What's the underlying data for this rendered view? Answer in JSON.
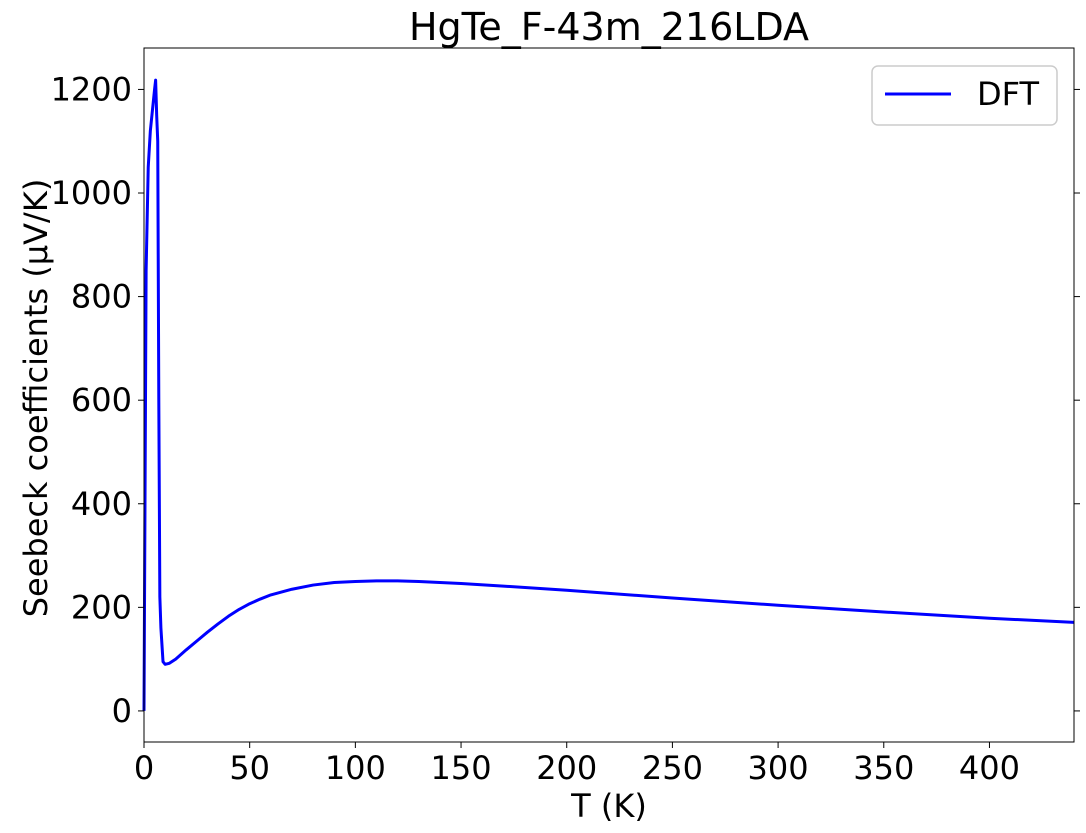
{
  "chart_data": {
    "type": "line",
    "title": "HgTe_F-43m_216LDA",
    "xlabel": "T (K)",
    "ylabel": "Seebeck coefficients (µV/K)",
    "xlim": [
      0,
      440
    ],
    "ylim": [
      -60,
      1280
    ],
    "xticks": [
      0,
      50,
      100,
      150,
      200,
      250,
      300,
      350,
      400
    ],
    "yticks": [
      0,
      200,
      400,
      600,
      800,
      1000,
      1200
    ],
    "grid": false,
    "legend_position": "top-right",
    "series": [
      {
        "name": "DFT",
        "color": "#0000ff",
        "points": [
          [
            0,
            0
          ],
          [
            1,
            850
          ],
          [
            2,
            1050
          ],
          [
            3,
            1120
          ],
          [
            4,
            1160
          ],
          [
            5,
            1200
          ],
          [
            5.5,
            1218
          ],
          [
            6,
            1150
          ],
          [
            6.5,
            1100
          ],
          [
            7,
            600
          ],
          [
            7.5,
            220
          ],
          [
            8,
            160
          ],
          [
            9,
            95
          ],
          [
            10,
            90
          ],
          [
            12,
            92
          ],
          [
            15,
            100
          ],
          [
            20,
            118
          ],
          [
            25,
            135
          ],
          [
            30,
            152
          ],
          [
            35,
            168
          ],
          [
            40,
            183
          ],
          [
            45,
            196
          ],
          [
            50,
            207
          ],
          [
            55,
            216
          ],
          [
            60,
            224
          ],
          [
            70,
            235
          ],
          [
            80,
            243
          ],
          [
            90,
            248
          ],
          [
            100,
            250
          ],
          [
            110,
            251
          ],
          [
            120,
            251
          ],
          [
            130,
            250
          ],
          [
            140,
            248
          ],
          [
            150,
            246
          ],
          [
            170,
            241
          ],
          [
            200,
            233
          ],
          [
            250,
            218
          ],
          [
            300,
            204
          ],
          [
            350,
            191
          ],
          [
            400,
            179
          ],
          [
            440,
            171
          ]
        ]
      }
    ]
  }
}
